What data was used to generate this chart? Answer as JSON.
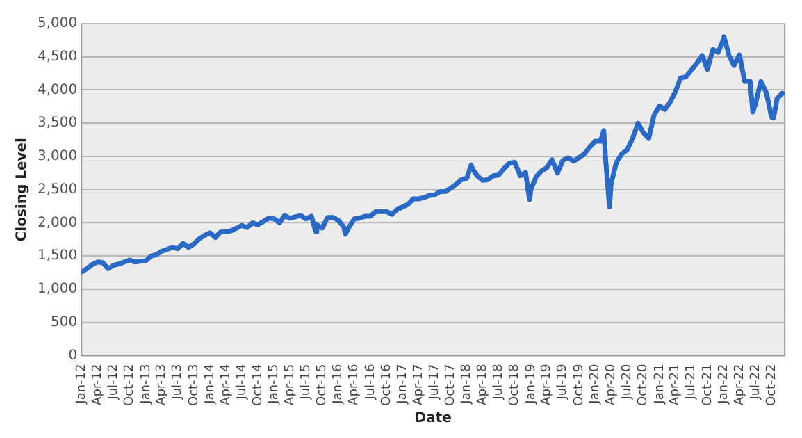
{
  "chart_data": {
    "type": "line",
    "xlabel": "Date",
    "ylabel": "Closing Level",
    "x": [
      "2012-01",
      "2012-02",
      "2012-03",
      "2012-04",
      "2012-05",
      "2012-06",
      "2012-07",
      "2012-08",
      "2012-09",
      "2012-10",
      "2012-11",
      "2012-12",
      "2013-01",
      "2013-02",
      "2013-03",
      "2013-04",
      "2013-05",
      "2013-06",
      "2013-07",
      "2013-08",
      "2013-09",
      "2013-10",
      "2013-11",
      "2013-12",
      "2014-01",
      "2014-02",
      "2014-03",
      "2014-04",
      "2014-05",
      "2014-06",
      "2014-07",
      "2014-08",
      "2014-09",
      "2014-10",
      "2014-11",
      "2014-12",
      "2015-01",
      "2015-02",
      "2015-03",
      "2015-04",
      "2015-05",
      "2015-06",
      "2015-07",
      "2015-08",
      "2015-08-25",
      "2015-09",
      "2015-10",
      "2015-11",
      "2015-12",
      "2016-01",
      "2016-02",
      "2016-02-11",
      "2016-03",
      "2016-04",
      "2016-05",
      "2016-06",
      "2016-07",
      "2016-08",
      "2016-09",
      "2016-10",
      "2016-11",
      "2016-12",
      "2017-01",
      "2017-02",
      "2017-03",
      "2017-04",
      "2017-05",
      "2017-06",
      "2017-07",
      "2017-08",
      "2017-09",
      "2017-10",
      "2017-11",
      "2017-12",
      "2018-01",
      "2018-01-26",
      "2018-02",
      "2018-03",
      "2018-04",
      "2018-05",
      "2018-06",
      "2018-07",
      "2018-08",
      "2018-09",
      "2018-10",
      "2018-11",
      "2018-12",
      "2018-12-24",
      "2019-01",
      "2019-02",
      "2019-03",
      "2019-04",
      "2019-05",
      "2019-06",
      "2019-07",
      "2019-08",
      "2019-09",
      "2019-10",
      "2019-11",
      "2019-12",
      "2020-01",
      "2020-02",
      "2020-02-19",
      "2020-03",
      "2020-03-23",
      "2020-04",
      "2020-05",
      "2020-06",
      "2020-07",
      "2020-08",
      "2020-09",
      "2020-10",
      "2020-11",
      "2020-12",
      "2021-01",
      "2021-02",
      "2021-03",
      "2021-04",
      "2021-05",
      "2021-06",
      "2021-07",
      "2021-08",
      "2021-09",
      "2021-10",
      "2021-11",
      "2021-12",
      "2022-01",
      "2022-01-03",
      "2022-02",
      "2022-03",
      "2022-04",
      "2022-05",
      "2022-06",
      "2022-06-16",
      "2022-07",
      "2022-08",
      "2022-09",
      "2022-10",
      "2022-10-12",
      "2022-11",
      "2022-12"
    ],
    "series": [
      {
        "color": "#2a69c6",
        "values": [
          1260,
          1310,
          1370,
          1410,
          1400,
          1310,
          1360,
          1380,
          1410,
          1440,
          1410,
          1420,
          1430,
          1500,
          1520,
          1570,
          1600,
          1630,
          1610,
          1690,
          1630,
          1680,
          1760,
          1810,
          1850,
          1780,
          1860,
          1870,
          1880,
          1920,
          1960,
          1930,
          2000,
          1970,
          2020,
          2070,
          2060,
          2000,
          2110,
          2070,
          2090,
          2110,
          2060,
          2100,
          1870,
          1970,
          1920,
          2080,
          2080,
          2040,
          1940,
          1830,
          1930,
          2060,
          2070,
          2100,
          2100,
          2170,
          2170,
          2170,
          2130,
          2200,
          2240,
          2280,
          2360,
          2360,
          2380,
          2410,
          2420,
          2470,
          2470,
          2520,
          2580,
          2650,
          2670,
          2870,
          2820,
          2710,
          2640,
          2650,
          2710,
          2720,
          2820,
          2900,
          2910,
          2710,
          2760,
          2350,
          2510,
          2700,
          2780,
          2830,
          2950,
          2750,
          2940,
          2980,
          2930,
          2980,
          3040,
          3140,
          3230,
          3230,
          3390,
          2950,
          2240,
          2590,
          2910,
          3040,
          3100,
          3270,
          3500,
          3360,
          3270,
          3620,
          3760,
          3710,
          3810,
          3970,
          4180,
          4200,
          4300,
          4400,
          4520,
          4310,
          4610,
          4570,
          4770,
          4800,
          4520,
          4370,
          4530,
          4130,
          4130,
          3670,
          3790,
          4130,
          3960,
          3590,
          3580,
          3870,
          3950
        ]
      }
    ],
    "xlim": [
      "2012-01",
      "2022-12-15"
    ],
    "xticks": [
      {
        "value": "2012-01",
        "label": "Jan-12"
      },
      {
        "value": "2012-04",
        "label": "Apr-12"
      },
      {
        "value": "2012-07",
        "label": "Jul-12"
      },
      {
        "value": "2012-10",
        "label": "Oct-12"
      },
      {
        "value": "2013-01",
        "label": "Jan-13"
      },
      {
        "value": "2013-04",
        "label": "Apr-13"
      },
      {
        "value": "2013-07",
        "label": "Jul-13"
      },
      {
        "value": "2013-10",
        "label": "Oct-13"
      },
      {
        "value": "2014-01",
        "label": "Jan-14"
      },
      {
        "value": "2014-04",
        "label": "Apr-14"
      },
      {
        "value": "2014-07",
        "label": "Jul-14"
      },
      {
        "value": "2014-10",
        "label": "Oct-14"
      },
      {
        "value": "2015-01",
        "label": "Jan-15"
      },
      {
        "value": "2015-04",
        "label": "Apr-15"
      },
      {
        "value": "2015-07",
        "label": "Jul-15"
      },
      {
        "value": "2015-10",
        "label": "Oct-15"
      },
      {
        "value": "2016-01",
        "label": "Jan-16"
      },
      {
        "value": "2016-04",
        "label": "Apr-16"
      },
      {
        "value": "2016-07",
        "label": "Jul-16"
      },
      {
        "value": "2016-10",
        "label": "Oct-16"
      },
      {
        "value": "2017-01",
        "label": "Jan-17"
      },
      {
        "value": "2017-04",
        "label": "Apr-17"
      },
      {
        "value": "2017-07",
        "label": "Jul-17"
      },
      {
        "value": "2017-10",
        "label": "Oct-17"
      },
      {
        "value": "2018-01",
        "label": "Jan-18"
      },
      {
        "value": "2018-04",
        "label": "Apr-18"
      },
      {
        "value": "2018-07",
        "label": "Jul-18"
      },
      {
        "value": "2018-10",
        "label": "Oct-18"
      },
      {
        "value": "2019-01",
        "label": "Jan-19"
      },
      {
        "value": "2019-04",
        "label": "Apr-19"
      },
      {
        "value": "2019-07",
        "label": "Jul-19"
      },
      {
        "value": "2019-10",
        "label": "Oct-19"
      },
      {
        "value": "2020-01",
        "label": "Jan-20"
      },
      {
        "value": "2020-04",
        "label": "Apr-20"
      },
      {
        "value": "2020-07",
        "label": "Jul-20"
      },
      {
        "value": "2020-10",
        "label": "Oct-20"
      },
      {
        "value": "2021-01",
        "label": "Jan-21"
      },
      {
        "value": "2021-04",
        "label": "Apr-21"
      },
      {
        "value": "2021-07",
        "label": "Jul-21"
      },
      {
        "value": "2021-10",
        "label": "Oct-21"
      },
      {
        "value": "2022-01",
        "label": "Jan-22"
      },
      {
        "value": "2022-04",
        "label": "Apr-22"
      },
      {
        "value": "2022-07",
        "label": "Jul-22"
      },
      {
        "value": "2022-10",
        "label": "Oct-22"
      }
    ],
    "ylim": [
      0,
      5000
    ],
    "yticks": [
      0,
      500,
      {
        "value": 1000,
        "label": "1,000"
      },
      {
        "value": 1500,
        "label": "1,500"
      },
      {
        "value": 2000,
        "label": "2,000"
      },
      {
        "value": 2500,
        "label": "2,500"
      },
      {
        "value": 3000,
        "label": "3,000"
      },
      {
        "value": 3500,
        "label": "3,500"
      },
      {
        "value": 4000,
        "label": "4,000"
      },
      {
        "value": 4500,
        "label": "4,500"
      },
      {
        "value": 5000,
        "label": "5,000"
      }
    ],
    "grid": "y",
    "legend": false,
    "marker": "none",
    "line_style": "solid"
  }
}
